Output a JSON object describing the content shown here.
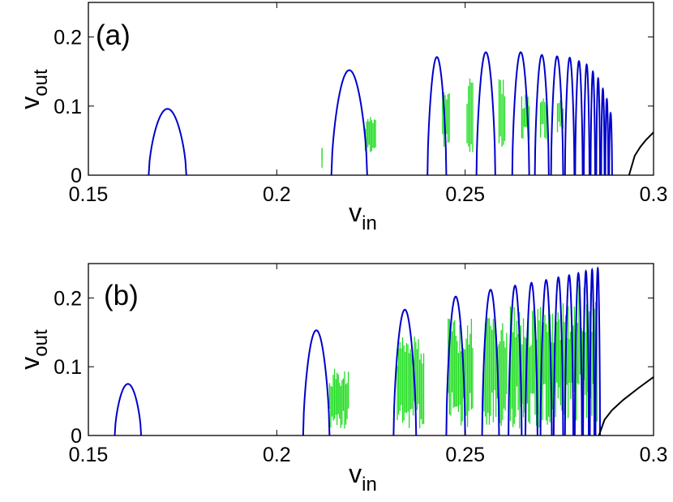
{
  "chart_data": [
    {
      "type": "line",
      "panel_label": "(a)",
      "xlabel_main": "v",
      "xlabel_sub": "in",
      "ylabel_main": "v",
      "ylabel_sub": "out",
      "xlim": [
        0.15,
        0.3
      ],
      "ylim": [
        0,
        0.25
      ],
      "xticks": [
        "0.15",
        "0.2",
        "0.25",
        "0.3"
      ],
      "yticks": [
        "0",
        "0.1",
        "0.2"
      ],
      "grid": false,
      "colors": {
        "periodic": "#0000cc",
        "chaotic": "#22dd22",
        "branch": "#000000"
      },
      "periodic_arches": [
        {
          "a": 0.166,
          "b": 0.176,
          "peak": 0.096
        },
        {
          "a": 0.2145,
          "b": 0.224,
          "peak": 0.152
        },
        {
          "a": 0.24,
          "b": 0.245,
          "peak": 0.171
        },
        {
          "a": 0.253,
          "b": 0.258,
          "peak": 0.178
        },
        {
          "a": 0.2625,
          "b": 0.267,
          "peak": 0.178
        },
        {
          "a": 0.2685,
          "b": 0.2722,
          "peak": 0.174
        },
        {
          "a": 0.2728,
          "b": 0.276,
          "peak": 0.172
        },
        {
          "a": 0.2765,
          "b": 0.279,
          "peak": 0.17
        },
        {
          "a": 0.2792,
          "b": 0.2812,
          "peak": 0.165
        },
        {
          "a": 0.2815,
          "b": 0.283,
          "peak": 0.16
        },
        {
          "a": 0.2833,
          "b": 0.2845,
          "peak": 0.15
        },
        {
          "a": 0.2848,
          "b": 0.2858,
          "peak": 0.14
        },
        {
          "a": 0.2861,
          "b": 0.287,
          "peak": 0.125
        },
        {
          "a": 0.2872,
          "b": 0.288,
          "peak": 0.11
        },
        {
          "a": 0.2882,
          "b": 0.289,
          "peak": 0.09
        }
      ],
      "chaotic_bands": [
        {
          "x0": 0.212,
          "x1": 0.212,
          "ymin": 0.01,
          "ymax": 0.05
        },
        {
          "x0": 0.2235,
          "x1": 0.2262,
          "ymin": 0.03,
          "ymax": 0.085
        },
        {
          "x0": 0.244,
          "x1": 0.2458,
          "ymin": 0.03,
          "ymax": 0.12
        },
        {
          "x0": 0.2505,
          "x1": 0.252,
          "ymin": 0.03,
          "ymax": 0.14
        },
        {
          "x0": 0.259,
          "x1": 0.2605,
          "ymin": 0.04,
          "ymax": 0.14
        },
        {
          "x0": 0.265,
          "x1": 0.267,
          "ymin": 0.05,
          "ymax": 0.12
        },
        {
          "x0": 0.27,
          "x1": 0.2715,
          "ymin": 0.05,
          "ymax": 0.12
        },
        {
          "x0": 0.2745,
          "x1": 0.276,
          "ymin": 0.06,
          "ymax": 0.115
        }
      ],
      "branch": {
        "x": [
          0.2935,
          0.295,
          0.2965,
          0.298,
          0.3
        ],
        "y": [
          0.0,
          0.028,
          0.041,
          0.051,
          0.062
        ]
      }
    },
    {
      "type": "line",
      "panel_label": "(b)",
      "xlabel_main": "v",
      "xlabel_sub": "in",
      "ylabel_main": "v",
      "ylabel_sub": "out",
      "xlim": [
        0.15,
        0.3
      ],
      "ylim": [
        0,
        0.25
      ],
      "xticks": [
        "0.15",
        "0.2",
        "0.25",
        "0.3"
      ],
      "yticks": [
        "0",
        "0.1",
        "0.2"
      ],
      "grid": false,
      "colors": {
        "periodic": "#0000cc",
        "chaotic": "#22dd22",
        "branch": "#000000"
      },
      "periodic_arches": [
        {
          "a": 0.157,
          "b": 0.164,
          "peak": 0.075
        },
        {
          "a": 0.207,
          "b": 0.214,
          "peak": 0.153
        },
        {
          "a": 0.231,
          "b": 0.237,
          "peak": 0.183
        },
        {
          "a": 0.245,
          "b": 0.25,
          "peak": 0.202
        },
        {
          "a": 0.2545,
          "b": 0.259,
          "peak": 0.212
        },
        {
          "a": 0.2615,
          "b": 0.265,
          "peak": 0.218
        },
        {
          "a": 0.266,
          "b": 0.2692,
          "peak": 0.222
        },
        {
          "a": 0.27,
          "b": 0.273,
          "peak": 0.226
        },
        {
          "a": 0.2735,
          "b": 0.276,
          "peak": 0.23
        },
        {
          "a": 0.2765,
          "b": 0.2787,
          "peak": 0.233
        },
        {
          "a": 0.2791,
          "b": 0.281,
          "peak": 0.236
        },
        {
          "a": 0.2813,
          "b": 0.2828,
          "peak": 0.239
        },
        {
          "a": 0.2831,
          "b": 0.2843,
          "peak": 0.241
        },
        {
          "a": 0.2846,
          "b": 0.2858,
          "peak": 0.243
        }
      ],
      "chaotic_bands": [
        {
          "x0": 0.214,
          "x1": 0.219,
          "ymin": 0.01,
          "ymax": 0.1
        },
        {
          "x0": 0.232,
          "x1": 0.239,
          "ymin": 0.01,
          "ymax": 0.145
        },
        {
          "x0": 0.2455,
          "x1": 0.252,
          "ymin": 0.01,
          "ymax": 0.17
        },
        {
          "x0": 0.255,
          "x1": 0.261,
          "ymin": 0.01,
          "ymax": 0.18
        },
        {
          "x0": 0.262,
          "x1": 0.2665,
          "ymin": 0.01,
          "ymax": 0.19
        },
        {
          "x0": 0.2668,
          "x1": 0.27,
          "ymin": 0.01,
          "ymax": 0.19
        },
        {
          "x0": 0.2705,
          "x1": 0.2735,
          "ymin": 0.01,
          "ymax": 0.2
        },
        {
          "x0": 0.274,
          "x1": 0.279,
          "ymin": 0.02,
          "ymax": 0.2
        },
        {
          "x0": 0.2795,
          "x1": 0.285,
          "ymin": 0.02,
          "ymax": 0.22
        }
      ],
      "branch": {
        "x": [
          0.2855,
          0.287,
          0.289,
          0.292,
          0.296,
          0.3
        ],
        "y": [
          0.0,
          0.023,
          0.037,
          0.052,
          0.069,
          0.085
        ]
      }
    }
  ]
}
